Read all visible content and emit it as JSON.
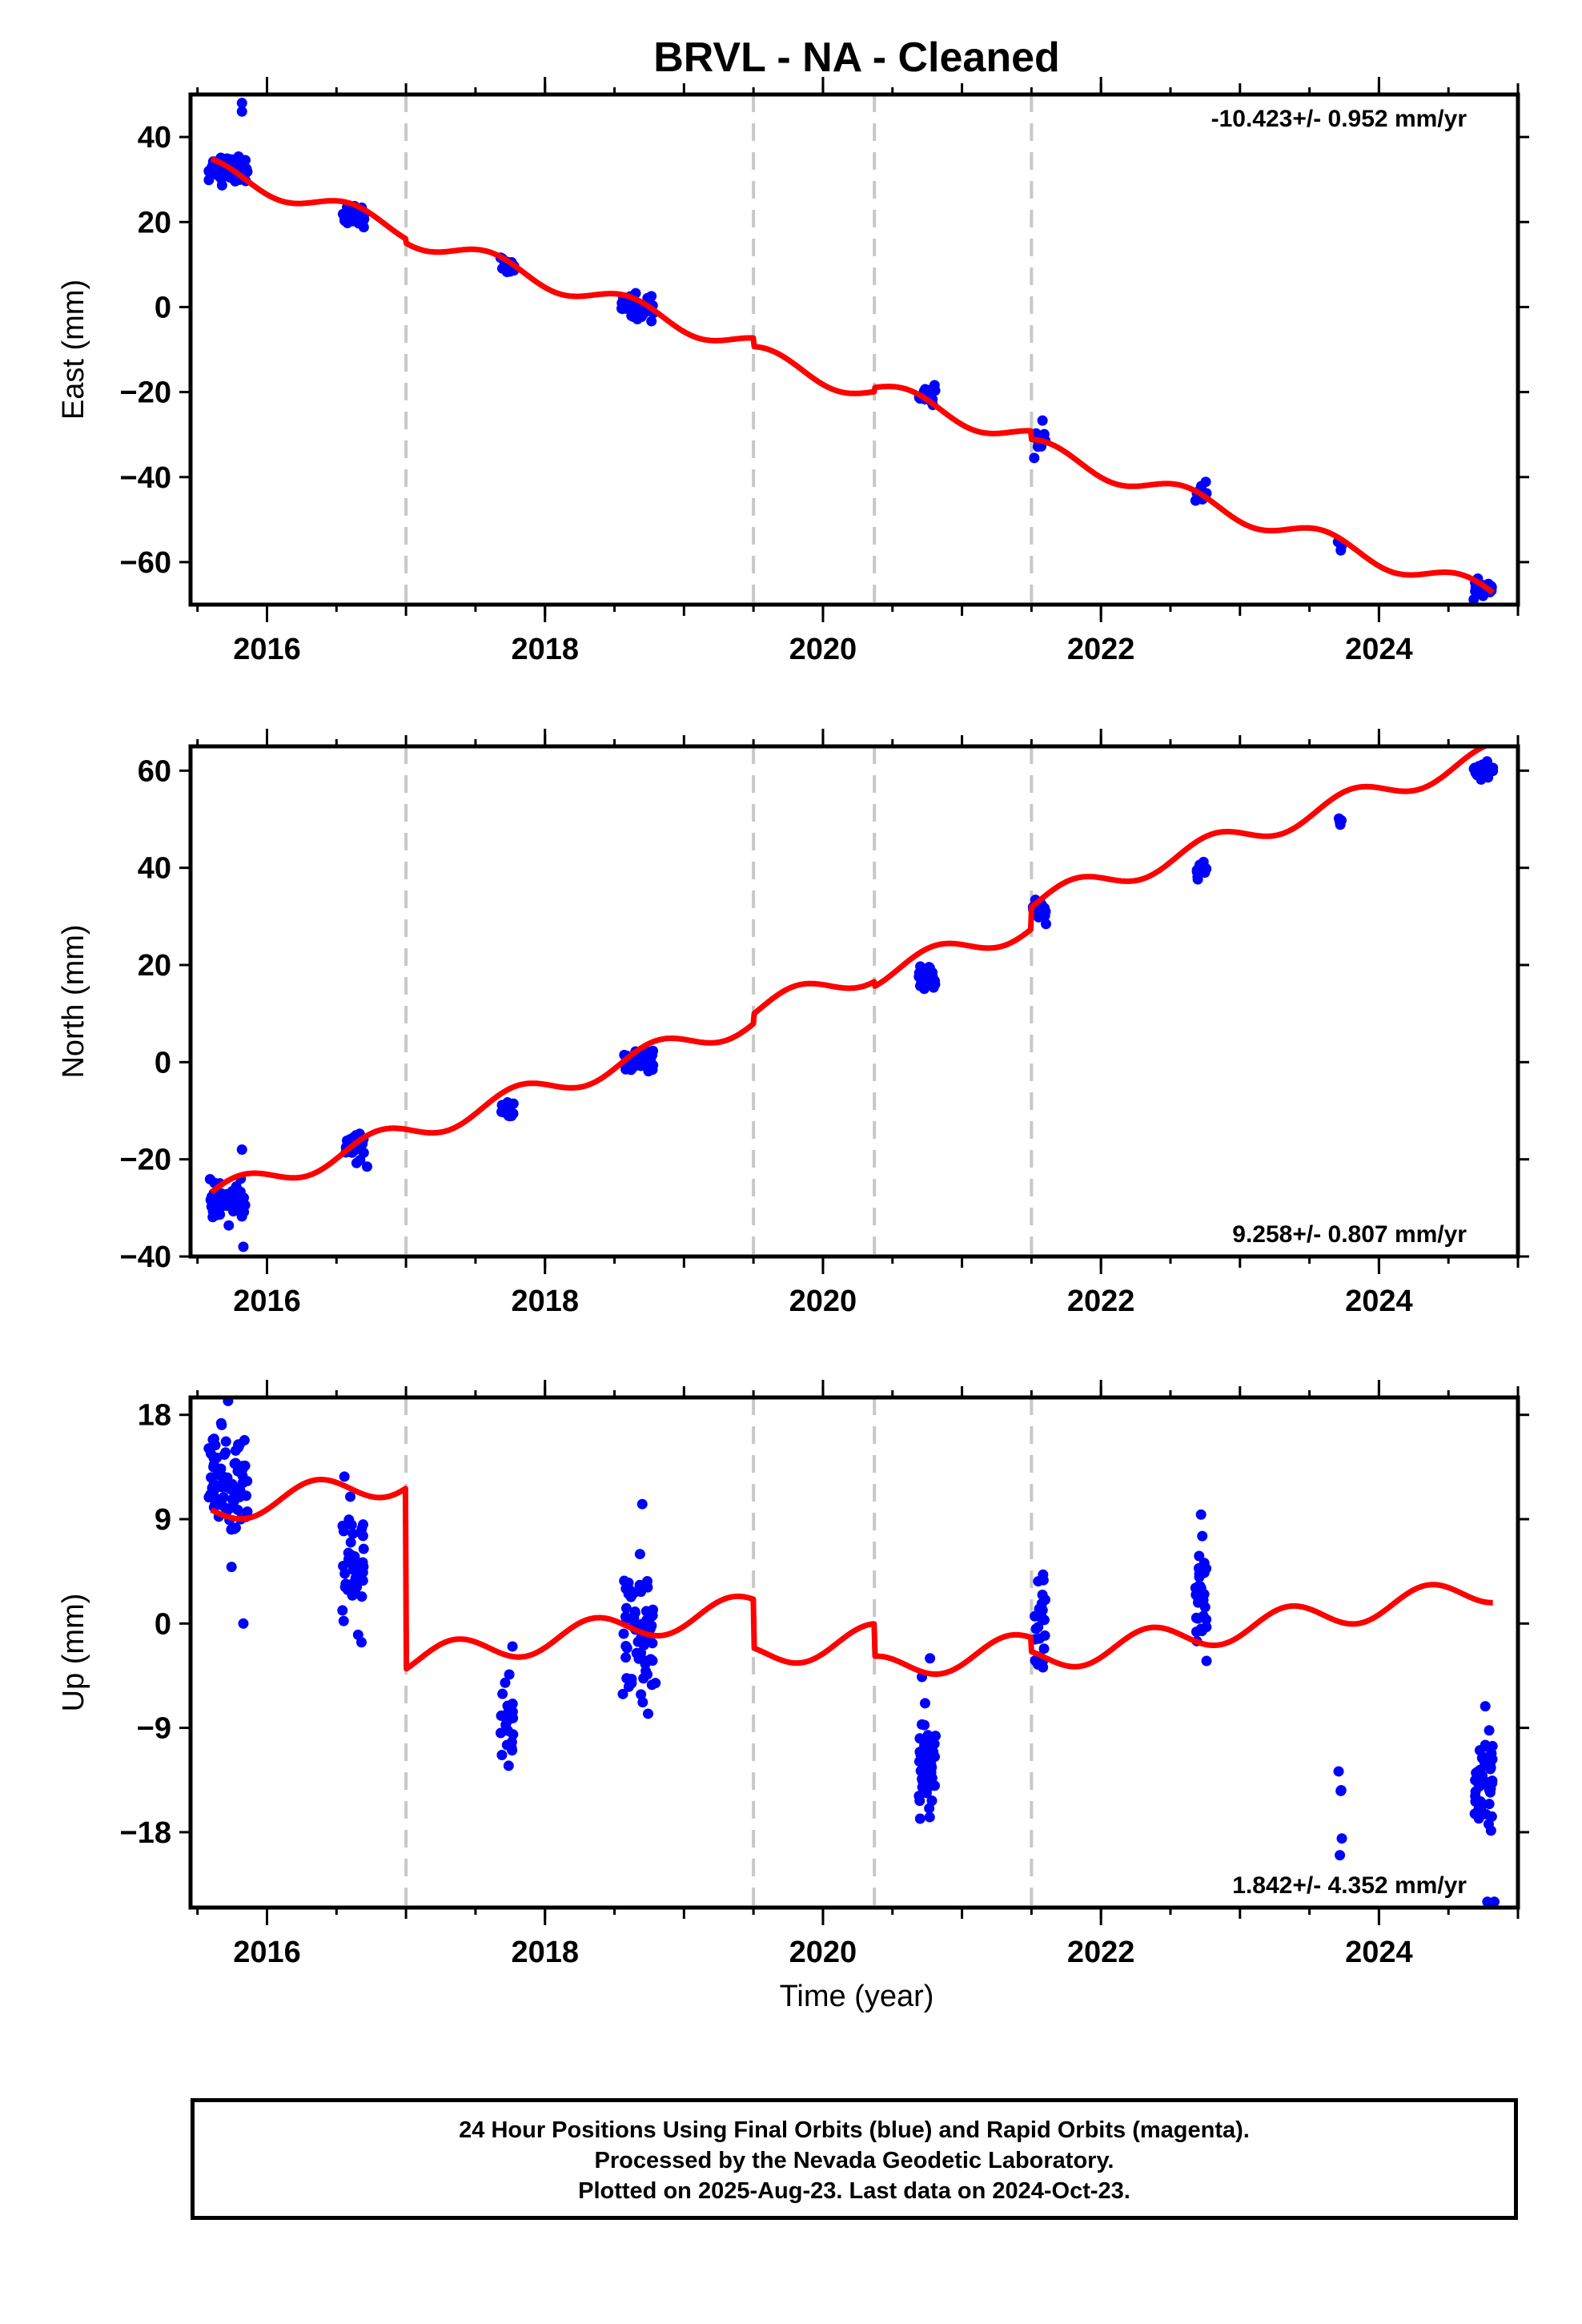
{
  "title": "BRVL  - NA - Cleaned",
  "xlabel": "Time (year)",
  "footer": {
    "line1": "24 Hour Positions Using Final Orbits (blue) and Rapid Orbits (magenta).",
    "line2": "Processed by the Nevada Geodetic Laboratory.",
    "line3": "Plotted on 2025-Aug-23. Last data on 2024-Oct-23."
  },
  "colors": {
    "data": "#0000ff",
    "model": "#ff0000",
    "breaks": "#c8c8c8",
    "axis": "#000000"
  },
  "chart_data": [
    {
      "type": "scatter",
      "ylabel": "East (mm)",
      "rate_text": "-10.423+/- 0.952 mm/yr",
      "rate_position": "top-right",
      "xlim": [
        2015.45,
        2025.0
      ],
      "ylim": [
        -70,
        50
      ],
      "yticks": [
        -60,
        -40,
        -20,
        0,
        20,
        40
      ],
      "xticks": [
        2016,
        2018,
        2020,
        2022,
        2024
      ],
      "breaks": [
        2017.0,
        2019.5,
        2020.37,
        2021.5
      ],
      "model": {
        "slope": -10.423,
        "t0": 2015.6,
        "start": 2015.6,
        "end": 2024.82,
        "offsets": [
          [
            2015.6,
            32.5
          ],
          [
            2017.0,
            31.5
          ],
          [
            2019.5,
            29.5
          ],
          [
            2020.37,
            30.5
          ],
          [
            2021.5,
            28.5
          ]
        ],
        "seasonal_amplitude": 2.3,
        "seasonal_phase": 0.35
      },
      "clusters": [
        {
          "t": 2015.72,
          "spread": 0.14,
          "y": 32.5,
          "sd": 1.6,
          "n": 70
        },
        {
          "t": 2016.62,
          "spread": 0.08,
          "y": 21.5,
          "sd": 1.2,
          "n": 30
        },
        {
          "t": 2017.73,
          "spread": 0.05,
          "y": 9.5,
          "sd": 1.0,
          "n": 16
        },
        {
          "t": 2018.67,
          "spread": 0.12,
          "y": 0.0,
          "sd": 1.5,
          "n": 45
        },
        {
          "t": 2020.75,
          "spread": 0.06,
          "y": -20.5,
          "sd": 1.1,
          "n": 22
        },
        {
          "t": 2021.56,
          "spread": 0.04,
          "y": -31.0,
          "sd": 2.0,
          "n": 10
        },
        {
          "t": 2022.72,
          "spread": 0.04,
          "y": -44.0,
          "sd": 1.0,
          "n": 14
        },
        {
          "t": 2023.72,
          "spread": 0.02,
          "y": -56.0,
          "sd": 1.0,
          "n": 4
        },
        {
          "t": 2024.75,
          "spread": 0.07,
          "y": -66.0,
          "sd": 0.8,
          "n": 30
        }
      ],
      "outliers": [
        [
          2015.82,
          48
        ],
        [
          2015.82,
          46
        ],
        [
          2021.52,
          -35.5
        ]
      ]
    },
    {
      "type": "scatter",
      "ylabel": "North (mm)",
      "rate_text": "9.258+/- 0.807 mm/yr",
      "rate_position": "bottom-right",
      "xlim": [
        2015.45,
        2025.0
      ],
      "ylim": [
        -40,
        65
      ],
      "yticks": [
        -40,
        -20,
        0,
        20,
        40,
        60
      ],
      "xticks": [
        2016,
        2018,
        2020,
        2022,
        2024
      ],
      "breaks": [
        2017.0,
        2019.5,
        2020.37,
        2021.5
      ],
      "model": {
        "slope": 9.258,
        "t0": 2015.6,
        "start": 2015.6,
        "end": 2024.82,
        "offsets": [
          [
            2015.6,
            -27.5
          ],
          [
            2017.0,
            -27.5
          ],
          [
            2019.5,
            -25.5
          ],
          [
            2020.37,
            -26.5
          ],
          [
            2021.5,
            -22.0
          ]
        ],
        "seasonal_amplitude": 2.3,
        "seasonal_phase": 0.55
      },
      "clusters": [
        {
          "t": 2015.72,
          "spread": 0.13,
          "y": -29.0,
          "sd": 1.8,
          "n": 60
        },
        {
          "t": 2016.63,
          "spread": 0.07,
          "y": -17.0,
          "sd": 1.3,
          "n": 25
        },
        {
          "t": 2017.73,
          "spread": 0.05,
          "y": -10.0,
          "sd": 1.0,
          "n": 15
        },
        {
          "t": 2018.68,
          "spread": 0.11,
          "y": 0.0,
          "sd": 1.5,
          "n": 40
        },
        {
          "t": 2020.75,
          "spread": 0.06,
          "y": 17.5,
          "sd": 1.0,
          "n": 22
        },
        {
          "t": 2021.56,
          "spread": 0.05,
          "y": 31.0,
          "sd": 1.0,
          "n": 20
        },
        {
          "t": 2022.72,
          "spread": 0.04,
          "y": 39.0,
          "sd": 1.0,
          "n": 14
        },
        {
          "t": 2023.72,
          "spread": 0.02,
          "y": 50.0,
          "sd": 0.6,
          "n": 4
        },
        {
          "t": 2024.75,
          "spread": 0.07,
          "y": 60.0,
          "sd": 1.0,
          "n": 32
        }
      ],
      "outliers": [
        [
          2015.82,
          -18
        ],
        [
          2015.83,
          -38
        ],
        [
          2016.72,
          -21.5
        ]
      ]
    },
    {
      "type": "scatter",
      "ylabel": "Up (mm)",
      "rate_text": "1.842+/- 4.352 mm/yr",
      "rate_position": "bottom-right",
      "xlim": [
        2015.45,
        2025.0
      ],
      "ylim": [
        -24.5,
        19.5
      ],
      "yticks": [
        -18,
        -9,
        0,
        9,
        18
      ],
      "xticks": [
        2016,
        2018,
        2020,
        2022,
        2024
      ],
      "breaks": [
        2017.0,
        2019.5,
        2020.37,
        2021.5
      ],
      "model": {
        "slope": 1.842,
        "t0": 2015.6,
        "start": 2015.6,
        "end": 2024.82,
        "offsets": [
          [
            2015.6,
            9.8
          ],
          [
            2017.0,
            -5.8
          ],
          [
            2019.5,
            -10.0
          ],
          [
            2020.37,
            -12.8
          ],
          [
            2021.5,
            -14.0
          ]
        ],
        "seasonal_amplitude": 1.2,
        "seasonal_phase": 0.1
      },
      "clusters": [
        {
          "t": 2015.72,
          "spread": 0.14,
          "y": 12.0,
          "sd": 2.5,
          "n": 80
        },
        {
          "t": 2016.62,
          "spread": 0.08,
          "y": 5.0,
          "sd": 2.5,
          "n": 45
        },
        {
          "t": 2017.73,
          "spread": 0.05,
          "y": -8.0,
          "sd": 2.5,
          "n": 25
        },
        {
          "t": 2018.68,
          "spread": 0.12,
          "y": -1.0,
          "sd": 2.8,
          "n": 70
        },
        {
          "t": 2020.75,
          "spread": 0.06,
          "y": -12.5,
          "sd": 2.5,
          "n": 50
        },
        {
          "t": 2021.56,
          "spread": 0.04,
          "y": 0.0,
          "sd": 1.8,
          "n": 25
        },
        {
          "t": 2022.72,
          "spread": 0.04,
          "y": 2.0,
          "sd": 2.5,
          "n": 30
        },
        {
          "t": 2023.72,
          "spread": 0.02,
          "y": -16.0,
          "sd": 2.0,
          "n": 5
        },
        {
          "t": 2024.75,
          "spread": 0.07,
          "y": -13.5,
          "sd": 2.5,
          "n": 50
        }
      ],
      "outliers": [
        [
          2015.83,
          0
        ],
        [
          2015.72,
          19.2
        ],
        [
          2020.77,
          -3
        ],
        [
          2018.7,
          10.3
        ],
        [
          2022.72,
          9.4
        ],
        [
          2024.78,
          -24
        ],
        [
          2024.83,
          -24
        ]
      ]
    }
  ]
}
